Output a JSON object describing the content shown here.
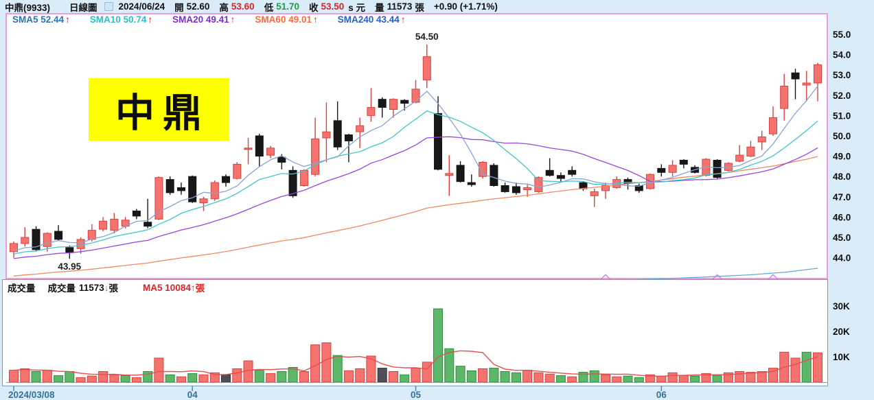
{
  "header": {
    "stock": "中鼎(9933)",
    "chart_type": "日線圖",
    "date": "2024/06/24",
    "open_label": "開",
    "open": "52.60",
    "high_label": "高",
    "high": "53.60",
    "low_label": "低",
    "low": "51.70",
    "close_label": "收",
    "close": "53.50",
    "unit_suffix": "s 元",
    "volume_label": "量",
    "volume": "11573",
    "volume_unit": "張",
    "change": "+0.90 (+1.71%)"
  },
  "sma_bar": {
    "items": [
      {
        "label": "SMA5 52.44",
        "arrow": "↑",
        "color": "#2d74b4"
      },
      {
        "label": "SMA10 50.74",
        "arrow": "↑",
        "color": "#27c2c8"
      },
      {
        "label": "SMA20 49.41",
        "arrow": "↑",
        "color": "#7b2fd4"
      },
      {
        "label": "SMA60 49.01",
        "arrow": "↑",
        "color": "#ff6a3c"
      },
      {
        "label": "SMA240 43.44",
        "arrow": "↑",
        "color": "#2a5fc8"
      }
    ]
  },
  "logo_text": "中鼎",
  "volume_header": {
    "title": "成交量",
    "vol_label": "成交量",
    "vol_value": "11573",
    "vol_arrow": "↓",
    "vol_unit": "張",
    "ma_text": "MA5 10084",
    "ma_arrow": "↑",
    "ma_unit": "張",
    "ma_color": "#dd2222"
  },
  "chart_data": {
    "type": "candlestick+volume",
    "title": "中鼎(9933) 日線圖",
    "dates": [
      "03/08",
      "03/11",
      "03/12",
      "03/13",
      "03/14",
      "03/15",
      "03/18",
      "03/19",
      "03/20",
      "03/21",
      "03/22",
      "03/25",
      "03/26",
      "03/27",
      "03/28",
      "03/29",
      "04/01",
      "04/02",
      "04/03",
      "04/08",
      "04/09",
      "04/10",
      "04/11",
      "04/12",
      "04/15",
      "04/16",
      "04/17",
      "04/18",
      "04/19",
      "04/22",
      "04/23",
      "04/24",
      "04/25",
      "04/26",
      "04/29",
      "04/30",
      "05/02",
      "05/03",
      "05/06",
      "05/07",
      "05/08",
      "05/09",
      "05/10",
      "05/13",
      "05/14",
      "05/15",
      "05/16",
      "05/17",
      "05/20",
      "05/21",
      "05/22",
      "05/23",
      "05/24",
      "05/27",
      "05/28",
      "05/29",
      "05/30",
      "05/31",
      "06/03",
      "06/04",
      "06/05",
      "06/06",
      "06/07",
      "06/11",
      "06/12",
      "06/13",
      "06/14",
      "06/17",
      "06/18",
      "06/19",
      "06/20",
      "06/21",
      "06/24"
    ],
    "ohlc": [
      [
        44.3,
        44.8,
        44.0,
        44.7
      ],
      [
        44.7,
        45.5,
        44.55,
        45.0
      ],
      [
        45.4,
        45.55,
        44.3,
        44.4
      ],
      [
        44.55,
        45.25,
        44.3,
        45.2
      ],
      [
        45.3,
        45.6,
        44.85,
        44.9
      ],
      [
        44.5,
        44.6,
        43.95,
        44.25
      ],
      [
        44.45,
        45.0,
        44.2,
        44.9
      ],
      [
        44.9,
        45.65,
        44.8,
        45.35
      ],
      [
        45.4,
        46.0,
        45.3,
        45.8
      ],
      [
        45.35,
        46.2,
        45.2,
        45.9
      ],
      [
        45.55,
        46.0,
        45.45,
        45.85
      ],
      [
        46.3,
        46.4,
        45.9,
        46.05
      ],
      [
        45.75,
        46.9,
        45.45,
        45.55
      ],
      [
        45.9,
        48.0,
        45.85,
        47.95
      ],
      [
        47.85,
        48.0,
        47.1,
        47.2
      ],
      [
        47.45,
        47.7,
        47.1,
        47.3
      ],
      [
        48.0,
        48.05,
        46.7,
        46.75
      ],
      [
        46.7,
        47.0,
        46.3,
        46.9
      ],
      [
        46.9,
        47.8,
        46.8,
        47.7
      ],
      [
        48.0,
        48.1,
        47.5,
        47.7
      ],
      [
        47.9,
        48.7,
        47.85,
        48.6
      ],
      [
        49.35,
        49.9,
        48.6,
        49.4
      ],
      [
        50.0,
        50.1,
        48.5,
        49.0
      ],
      [
        49.05,
        49.5,
        48.9,
        49.4
      ],
      [
        48.95,
        49.1,
        48.35,
        48.7
      ],
      [
        48.3,
        48.5,
        46.95,
        47.05
      ],
      [
        47.55,
        48.35,
        47.5,
        48.3
      ],
      [
        48.1,
        50.9,
        48.0,
        49.85
      ],
      [
        49.9,
        51.65,
        48.7,
        50.2
      ],
      [
        50.75,
        51.7,
        49.3,
        49.45
      ],
      [
        50.05,
        50.1,
        48.7,
        49.75
      ],
      [
        50.2,
        50.9,
        49.4,
        50.5
      ],
      [
        51.0,
        52.35,
        50.7,
        51.4
      ],
      [
        51.8,
        51.9,
        50.9,
        51.4
      ],
      [
        51.3,
        51.85,
        50.9,
        51.8
      ],
      [
        51.75,
        51.8,
        51.25,
        51.6
      ],
      [
        51.65,
        52.75,
        51.6,
        52.3
      ],
      [
        52.75,
        54.5,
        52.35,
        53.9
      ],
      [
        51.1,
        51.95,
        48.3,
        48.35
      ],
      [
        48.05,
        49.05,
        47.05,
        48.15
      ],
      [
        48.55,
        48.75,
        47.7,
        47.75
      ],
      [
        47.7,
        48.1,
        47.5,
        47.6
      ],
      [
        48.0,
        48.75,
        47.9,
        48.7
      ],
      [
        48.55,
        48.65,
        47.5,
        47.55
      ],
      [
        47.55,
        47.7,
        47.2,
        47.25
      ],
      [
        47.5,
        47.7,
        47.1,
        47.2
      ],
      [
        47.35,
        47.6,
        47.0,
        47.45
      ],
      [
        47.25,
        48.0,
        47.2,
        47.95
      ],
      [
        48.3,
        48.9,
        48.0,
        48.05
      ],
      [
        48.05,
        48.2,
        47.75,
        47.9
      ],
      [
        48.3,
        48.5,
        48.0,
        48.1
      ],
      [
        47.7,
        47.75,
        47.3,
        47.4
      ],
      [
        47.05,
        47.4,
        46.5,
        47.25
      ],
      [
        47.3,
        47.7,
        46.9,
        47.55
      ],
      [
        47.45,
        48.0,
        47.4,
        47.85
      ],
      [
        47.85,
        47.95,
        47.35,
        47.65
      ],
      [
        47.55,
        47.65,
        47.2,
        47.3
      ],
      [
        47.4,
        48.15,
        47.35,
        48.1
      ],
      [
        48.4,
        48.6,
        48.0,
        48.2
      ],
      [
        48.2,
        48.8,
        48.0,
        48.55
      ],
      [
        48.8,
        48.85,
        48.4,
        48.6
      ],
      [
        48.45,
        48.55,
        48.15,
        48.2
      ],
      [
        48.05,
        48.9,
        48.0,
        48.85
      ],
      [
        48.8,
        48.85,
        47.9,
        47.95
      ],
      [
        48.3,
        48.7,
        48.25,
        48.65
      ],
      [
        48.75,
        49.55,
        48.7,
        49.05
      ],
      [
        49.0,
        49.75,
        48.95,
        49.45
      ],
      [
        49.7,
        50.25,
        49.3,
        49.95
      ],
      [
        50.1,
        51.45,
        50.0,
        50.9
      ],
      [
        51.35,
        53.05,
        50.75,
        52.45
      ],
      [
        53.1,
        53.3,
        51.8,
        52.8
      ],
      [
        52.5,
        53.2,
        51.7,
        52.6
      ],
      [
        52.6,
        53.6,
        51.7,
        53.5
      ]
    ],
    "volumes": [
      4700,
      5300,
      4200,
      4700,
      2600,
      4200,
      1800,
      2400,
      4200,
      2900,
      2600,
      1800,
      4200,
      9500,
      2900,
      2100,
      3400,
      2900,
      3700,
      2900,
      5300,
      8400,
      4700,
      3400,
      4200,
      5800,
      4200,
      14700,
      15500,
      10500,
      4500,
      5300,
      10300,
      5500,
      4200,
      2900,
      5500,
      7900,
      28900,
      13200,
      6300,
      4500,
      5300,
      5500,
      4200,
      3700,
      4700,
      3700,
      3200,
      2600,
      2100,
      3900,
      4500,
      2900,
      2100,
      2400,
      1800,
      2900,
      2400,
      3700,
      2600,
      2400,
      3400,
      2600,
      3700,
      4200,
      3900,
      4200,
      5500,
      11800,
      9500,
      11800,
      11573
    ],
    "annotations": [
      {
        "index": 37,
        "text": "54.50",
        "pos": "above"
      },
      {
        "index": 5,
        "text": "43.95",
        "pos": "below"
      }
    ],
    "ma_lines": [
      {
        "name": "SMA60",
        "period": 60,
        "color": "#f0895c",
        "current": 49.01
      },
      {
        "name": "SMA20",
        "period": 20,
        "color": "#9a44e0",
        "current": 49.41
      },
      {
        "name": "SMA10",
        "period": 10,
        "color": "#3fc6ca",
        "current": 50.74
      },
      {
        "name": "SMA5",
        "period": 5,
        "color": "#85a3d6",
        "current": 52.44
      }
    ],
    "sma240": {
      "name": "SMA240",
      "color": "#63a8dd",
      "current": 43.44,
      "points": [
        [
          48,
          42.8
        ],
        [
          54,
          42.9
        ],
        [
          58,
          42.96
        ],
        [
          62,
          43.05
        ],
        [
          66,
          43.16
        ],
        [
          69,
          43.28
        ],
        [
          72,
          43.48
        ]
      ]
    },
    "markers": [
      {
        "index": 53,
        "price": 42.95
      },
      {
        "index": 63,
        "price": 42.95
      },
      {
        "index": 68,
        "price": 42.95
      }
    ],
    "volume_ma": {
      "name": "MA5",
      "period": 5,
      "color": "#e44f4f",
      "current": 10084
    },
    "price_axis": {
      "labels": [
        "55.0",
        "54.0",
        "53.0",
        "52.0",
        "51.0",
        "50.0",
        "49.0",
        "48.0",
        "47.0",
        "46.0",
        "45.0",
        "44.0"
      ],
      "min": 44.0,
      "max": 55.0
    },
    "volume_axis": {
      "labels": [
        {
          "text": "30K",
          "value": 30000
        },
        {
          "text": "20K",
          "value": 20000
        },
        {
          "text": "10K",
          "value": 10000
        }
      ]
    },
    "x_axis": [
      {
        "text": "2024/03/08",
        "index": 0,
        "align": "left"
      },
      {
        "text": "04",
        "index": 16,
        "align": "center"
      },
      {
        "text": "05",
        "index": 36,
        "align": "center"
      },
      {
        "text": "06",
        "index": 58,
        "align": "center"
      }
    ],
    "colors": {
      "up": "#f5736f",
      "up_stroke": "#d8423b",
      "down": "#17171a",
      "flat": "#4f4f58",
      "flat_stroke": "#303036",
      "vol_down": "#5cb768",
      "vol_down_stroke": "#2f8d3f",
      "marker": "#c979e8"
    }
  }
}
